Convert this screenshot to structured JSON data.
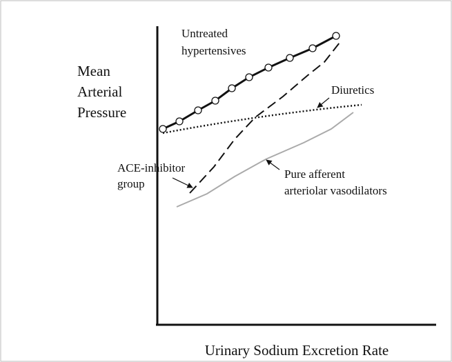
{
  "y_axis_label": [
    "Mean",
    "Arterial",
    "Pressure"
  ],
  "x_axis_label": "Urinary Sodium Excretion Rate",
  "curves": [
    {
      "label": [
        "Untreated",
        "hypertensives"
      ]
    },
    {
      "label": [
        "Diuretics"
      ]
    },
    {
      "label": [
        "ACE-inhibitor",
        "group"
      ]
    },
    {
      "label": [
        "Pure afferent",
        "arteriolar vasodilators"
      ]
    }
  ]
}
